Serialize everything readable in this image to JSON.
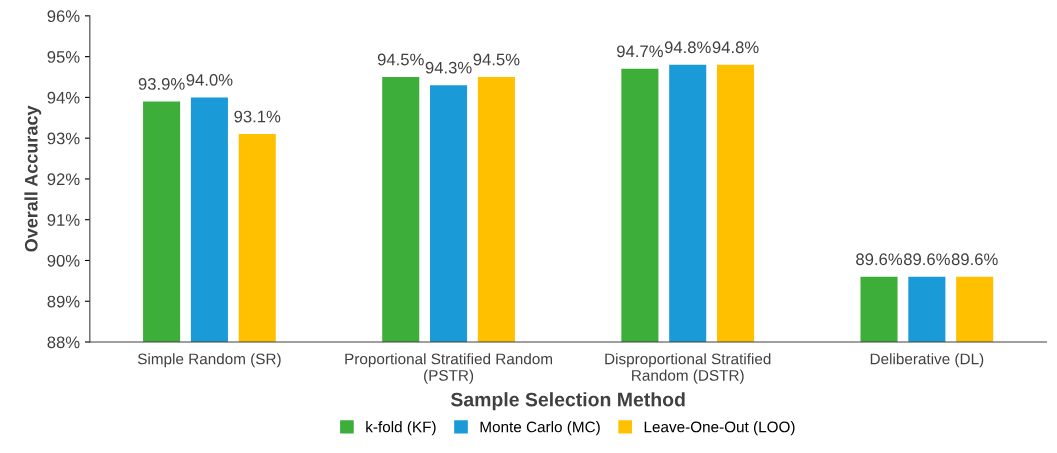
{
  "chart_data": {
    "type": "bar",
    "xlabel": "Sample Selection Method",
    "ylabel": "Overall Accuracy",
    "categories": [
      "Simple Random (SR)",
      "Proportional Stratified Random\n(PSTR)",
      "Disproportional Stratified\nRandom (DSTR)",
      "Deliberative (DL)"
    ],
    "series": [
      {
        "name": "k-fold (KF)",
        "color": "#3dae3a",
        "values": [
          93.9,
          94.5,
          94.7,
          89.6
        ],
        "value_labels": [
          "93.9%",
          "94.5%",
          "94.7%",
          "89.6%"
        ]
      },
      {
        "name": "Monte Carlo (MC)",
        "color": "#1b9ad8",
        "values": [
          94.0,
          94.3,
          94.8,
          89.6
        ],
        "value_labels": [
          "94.0%",
          "94.3%",
          "94.8%",
          "89.6%"
        ]
      },
      {
        "name": "Leave-One-Out (LOO)",
        "color": "#ffc000",
        "values": [
          93.1,
          94.5,
          94.8,
          89.6
        ],
        "value_labels": [
          "93.1%",
          "94.5%",
          "94.8%",
          "89.6%"
        ]
      }
    ],
    "ylim": [
      88,
      96
    ],
    "yticks": [
      {
        "value": 88,
        "label": "88%"
      },
      {
        "value": 89,
        "label": "89%"
      },
      {
        "value": 90,
        "label": "90%"
      },
      {
        "value": 91,
        "label": "91%"
      },
      {
        "value": 92,
        "label": "92%"
      },
      {
        "value": 93,
        "label": "93%"
      },
      {
        "value": 94,
        "label": "94%"
      },
      {
        "value": 95,
        "label": "95%"
      },
      {
        "value": 96,
        "label": "96%"
      }
    ],
    "grid": false,
    "legend": "bottom"
  }
}
